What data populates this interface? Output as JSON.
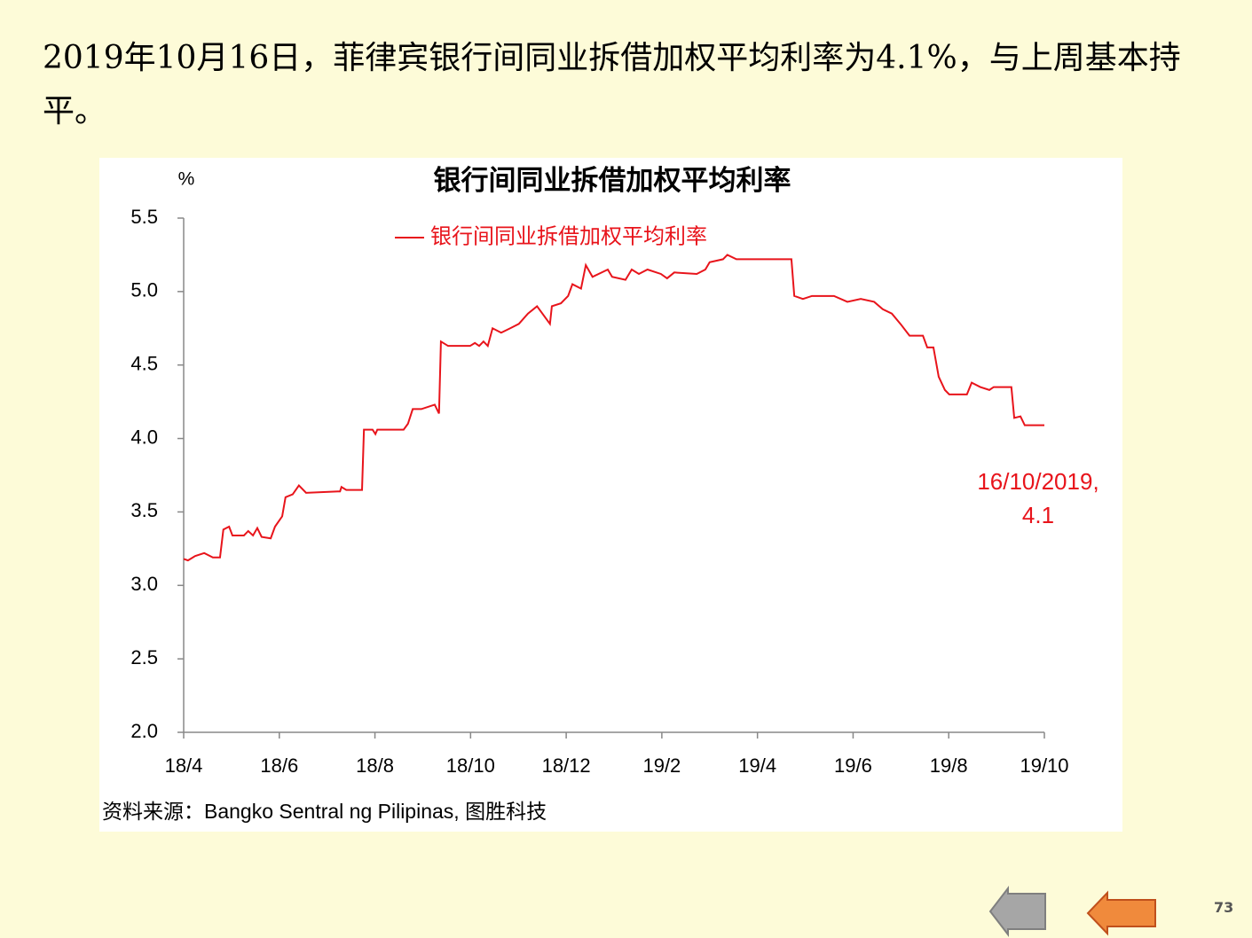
{
  "heading": "2019年10月16日，菲律宾银行间同业拆借加权平均利率为4.1%，与上周基本持平。",
  "chart_data": {
    "type": "line",
    "title": "银行间同业拆借加权平均利率",
    "y_label": "%",
    "xlim": [
      0,
      18
    ],
    "xticks": [
      {
        "value": 0,
        "label": "18/4"
      },
      {
        "value": 2,
        "label": "18/6"
      },
      {
        "value": 4,
        "label": "18/8"
      },
      {
        "value": 6,
        "label": "18/10"
      },
      {
        "value": 8,
        "label": "18/12"
      },
      {
        "value": 10,
        "label": "19/2"
      },
      {
        "value": 12,
        "label": "19/4"
      },
      {
        "value": 14,
        "label": "19/6"
      },
      {
        "value": 16,
        "label": "19/8"
      },
      {
        "value": 18,
        "label": "19/10"
      }
    ],
    "ylim": [
      2.0,
      5.5
    ],
    "yticks": [
      {
        "value": 2,
        "label": "2.0"
      },
      {
        "value": 2.5,
        "label": "2.5"
      },
      {
        "value": 3,
        "label": "3.0"
      },
      {
        "value": 3.5,
        "label": "3.5"
      },
      {
        "value": 4,
        "label": "4.0"
      },
      {
        "value": 4.5,
        "label": "4.5"
      },
      {
        "value": 5,
        "label": "5.0"
      },
      {
        "value": 5.5,
        "label": "5.5"
      }
    ],
    "x": [
      0,
      0.09,
      0.24,
      0.43,
      0.61,
      0.76,
      0.83,
      0.95,
      1.02,
      1.26,
      1.35,
      1.45,
      1.54,
      1.63,
      1.82,
      1.91,
      2.06,
      2.13,
      2.28,
      2.41,
      2.56,
      3.27,
      3.3,
      3.4,
      3.73,
      3.77,
      3.95,
      4.01,
      4.05,
      4.6,
      4.69,
      4.79,
      4.97,
      5.25,
      5.34,
      5.38,
      5.53,
      5.99,
      6.09,
      6.18,
      6.27,
      6.36,
      6.46,
      6.64,
      6.83,
      7.01,
      7.2,
      7.39,
      7.66,
      7.7,
      7.89,
      8.04,
      8.13,
      8.31,
      8.41,
      8.55,
      8.87,
      8.96,
      9.24,
      9.37,
      9.52,
      9.7,
      9.98,
      10.11,
      10.26,
      10.73,
      10.91,
      11.0,
      11.28,
      11.37,
      11.56,
      12.71,
      12.77,
      12.95,
      13.14,
      13.6,
      13.88,
      14.16,
      14.44,
      14.62,
      14.81,
      14.99,
      15.18,
      15.46,
      15.55,
      15.68,
      15.79,
      15.92,
      16.01,
      16.38,
      16.48,
      16.66,
      16.85,
      16.94,
      17.31,
      17.37,
      17.5,
      17.59,
      18.0
    ],
    "series": [
      {
        "name": "银行间同业拆借加权平均利率",
        "color": "#e8141b",
        "values": [
          3.18,
          3.17,
          3.2,
          3.22,
          3.19,
          3.19,
          3.38,
          3.4,
          3.34,
          3.34,
          3.37,
          3.34,
          3.39,
          3.33,
          3.32,
          3.4,
          3.47,
          3.6,
          3.62,
          3.68,
          3.63,
          3.64,
          3.67,
          3.65,
          3.65,
          4.06,
          4.06,
          4.03,
          4.06,
          4.06,
          4.1,
          4.2,
          4.2,
          4.23,
          4.17,
          4.66,
          4.63,
          4.63,
          4.65,
          4.63,
          4.66,
          4.63,
          4.75,
          4.72,
          4.75,
          4.78,
          4.85,
          4.9,
          4.78,
          4.9,
          4.92,
          4.97,
          5.05,
          5.02,
          5.18,
          5.1,
          5.15,
          5.1,
          5.08,
          5.15,
          5.12,
          5.15,
          5.12,
          5.09,
          5.13,
          5.12,
          5.15,
          5.2,
          5.22,
          5.25,
          5.22,
          5.22,
          4.97,
          4.95,
          4.97,
          4.97,
          4.93,
          4.95,
          4.93,
          4.88,
          4.85,
          4.78,
          4.7,
          4.7,
          4.62,
          4.62,
          4.42,
          4.33,
          4.3,
          4.3,
          4.38,
          4.35,
          4.33,
          4.35,
          4.35,
          4.14,
          4.15,
          4.09,
          4.09
        ]
      }
    ],
    "annotation": [
      "16/10/2019,",
      "4.1"
    ],
    "source": "资料来源：Bangko  Sentral  ng Pilipinas,  图胜科技"
  },
  "page_number": "73"
}
